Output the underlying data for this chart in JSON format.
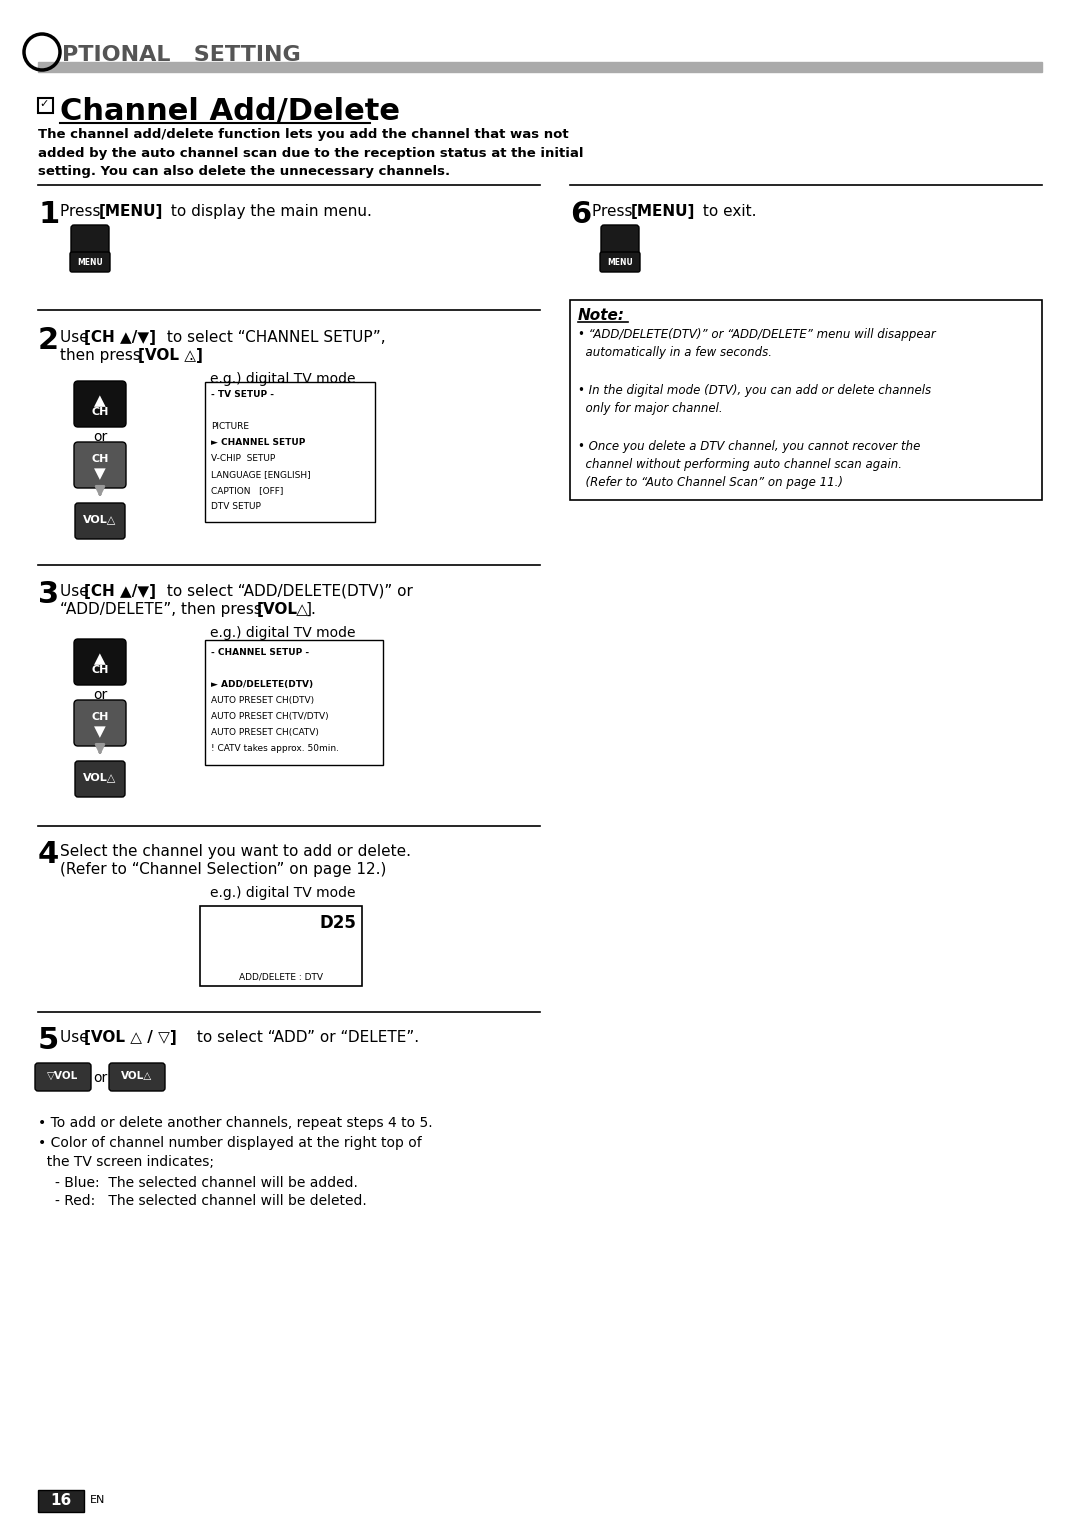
{
  "bg_color": "#ffffff",
  "text_color": "#000000",
  "gray_color": "#888888",
  "light_gray": "#aaaaaa",
  "title": "Channel Add/Delete",
  "subtitle": "The channel add/delete function lets you add the channel that was not\nadded by the auto channel scan due to the reception status at the initial\nsetting. You can also delete the unnecessary channels.",
  "note_title": "Note:",
  "note1": "• “ADD/DELETE(DTV)” or “ADD/DELETE” menu will disappear\n  automatically in a few seconds.",
  "note2": "• In the digital mode (DTV), you can add or delete channels\n  only for major channel.",
  "note3": "• Once you delete a DTV channel, you cannot recover the\n  channel without performing auto channel scan again.\n  (Refer to “Auto Channel Scan” on page 11.)",
  "bullet1": "• To add or delete another channels, repeat steps 4 to 5.",
  "bullet2": "• Color of channel number displayed at the right top of\n  the TV screen indicates;",
  "bullet3": "- Blue:  The selected channel will be added.",
  "bullet4": "- Red:   The selected channel will be deleted.",
  "page_num": "16",
  "tv_menu1": [
    "- TV SETUP -",
    "",
    "PICTURE",
    "► CHANNEL SETUP",
    "V-CHIP  SETUP",
    "LANGUAGE [ENGLISH]",
    "CAPTION   [OFF]",
    "DTV SETUP"
  ],
  "tv_menu2": [
    "- CHANNEL SETUP -",
    "",
    "► ADD/DELETE(DTV)",
    "AUTO PRESET CH(DTV)",
    "AUTO PRESET CH(TV/DTV)",
    "AUTO PRESET CH(CATV)",
    "! CATV takes approx. 50min."
  ]
}
